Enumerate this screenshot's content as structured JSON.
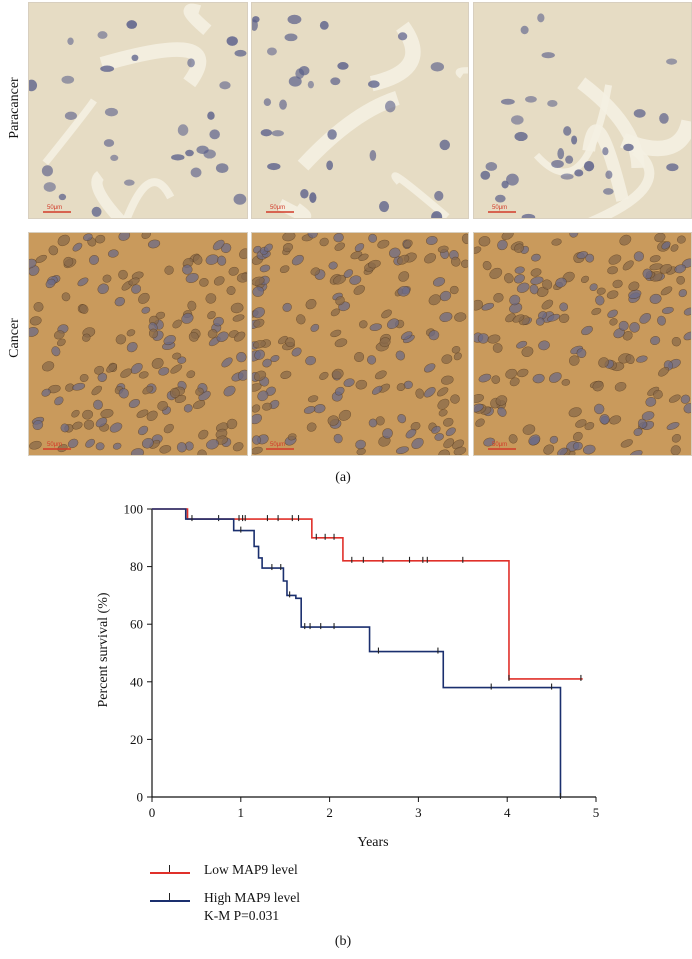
{
  "figure": {
    "panel_a": {
      "row_labels": [
        "Paracancer",
        "Cancer"
      ],
      "scale_bar_label": "50μm",
      "label": "(a)"
    },
    "panel_b": {
      "label": "(b)"
    },
    "legend": {
      "low_label": "Low MAP9 level",
      "high_label": "High MAP9 level",
      "stat_label": "K-M P=0.031"
    },
    "colors": {
      "low": "#e0302a",
      "high": "#1a2f6e",
      "paracancer_bg": "#e6dcc4",
      "cancer_bg": "#c99a5c",
      "nucleus": "#5a5f8a"
    }
  },
  "chart_data": {
    "type": "line",
    "xlabel": "Years",
    "ylabel": "Percent survival (%)",
    "xlim": [
      0,
      5
    ],
    "ylim": [
      0,
      100
    ],
    "xticks": [
      "0",
      "1",
      "2",
      "3",
      "4",
      "5"
    ],
    "yticks": [
      "0",
      "20",
      "40",
      "60",
      "80",
      "100"
    ],
    "grid": false,
    "series": [
      {
        "name": "Low MAP9 level",
        "color": "#e0302a",
        "steps": [
          [
            0,
            100
          ],
          [
            0.4,
            96.5
          ],
          [
            1.8,
            90
          ],
          [
            2.15,
            82
          ],
          [
            4.02,
            41
          ],
          [
            4.85,
            41
          ]
        ],
        "censor": [
          0.75,
          0.98,
          1.02,
          1.05,
          1.3,
          1.42,
          1.58,
          1.65,
          1.85,
          1.95,
          2.05,
          2.25,
          2.38,
          2.6,
          2.9,
          3.05,
          3.1,
          3.5,
          4.02,
          4.83
        ]
      },
      {
        "name": "High MAP9 level",
        "color": "#1a2f6e",
        "steps": [
          [
            0,
            100
          ],
          [
            0.38,
            96.5
          ],
          [
            0.92,
            92.5
          ],
          [
            1.15,
            87
          ],
          [
            1.2,
            83
          ],
          [
            1.24,
            79.5
          ],
          [
            1.48,
            75
          ],
          [
            1.52,
            70
          ],
          [
            1.62,
            69
          ],
          [
            1.68,
            59
          ],
          [
            2.45,
            50.5
          ],
          [
            3.28,
            38
          ],
          [
            4.6,
            0
          ]
        ],
        "censor": [
          0.45,
          1.0,
          1.35,
          1.45,
          1.55,
          1.72,
          1.78,
          1.9,
          2.05,
          2.55,
          3.22,
          3.82,
          4.5,
          4.6
        ]
      }
    ]
  }
}
